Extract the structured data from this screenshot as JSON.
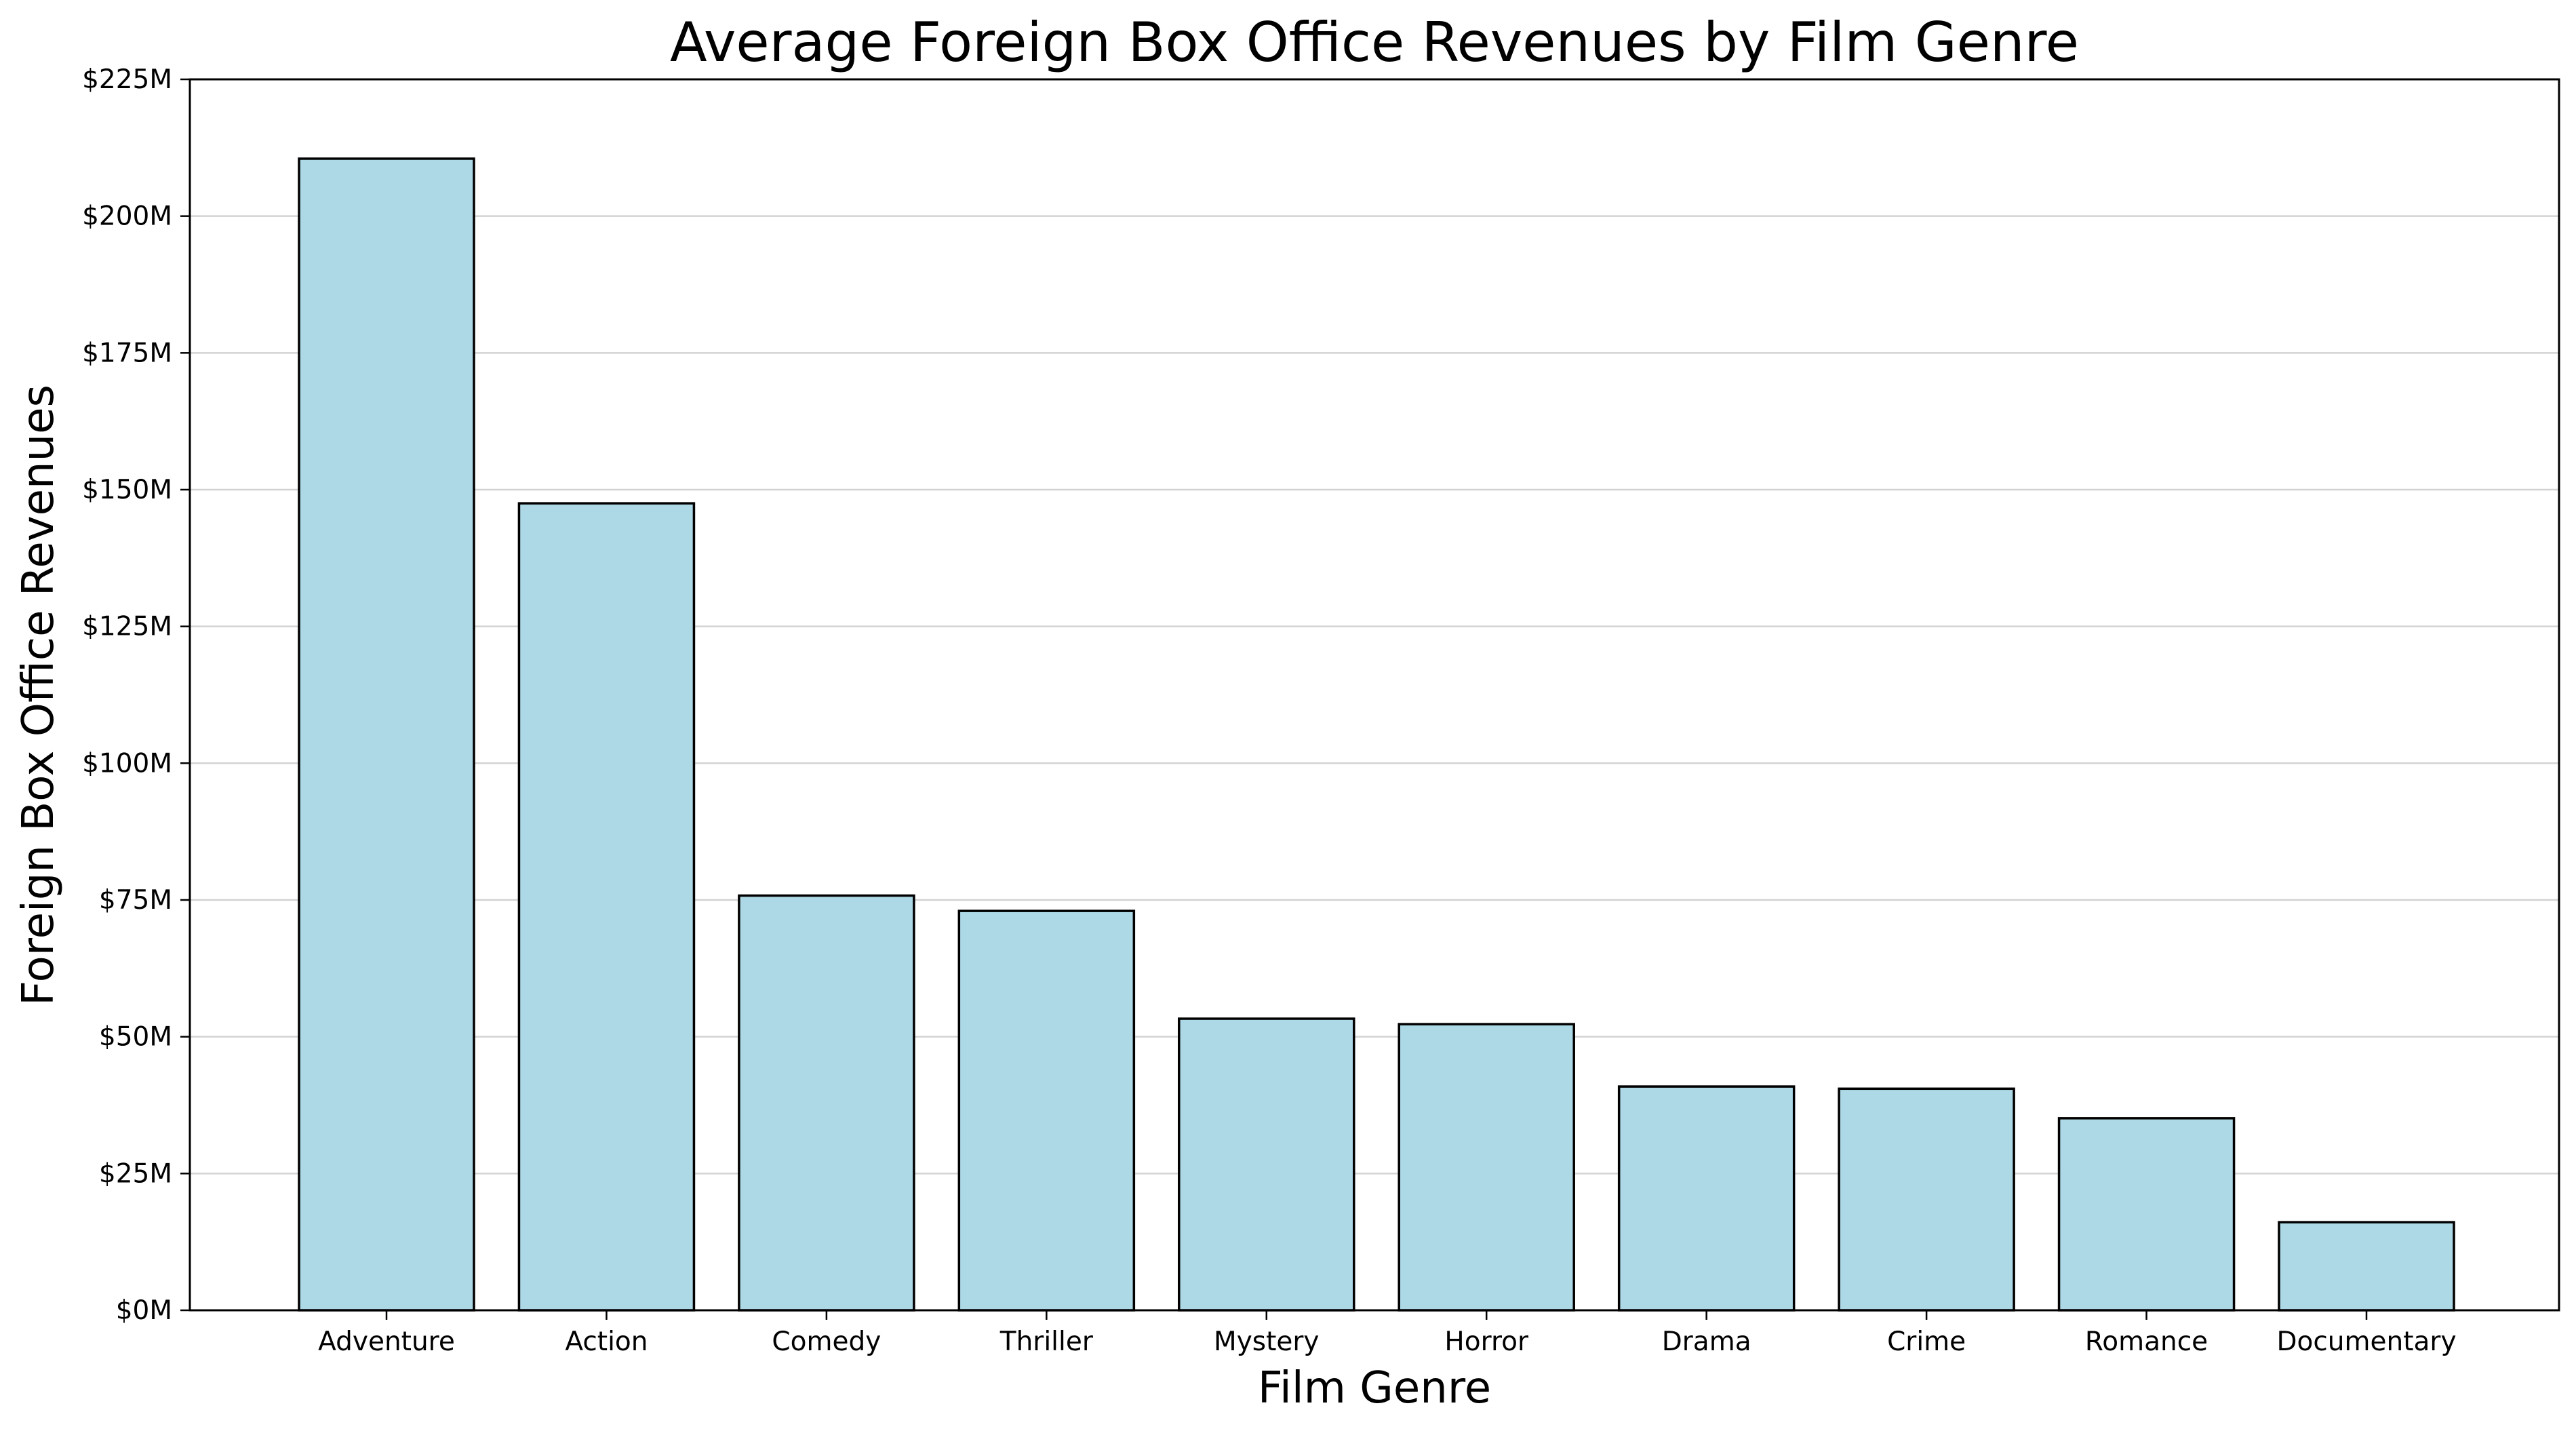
{
  "chart_data": {
    "type": "bar",
    "title": "Average Foreign Box Office Revenues by Film Genre",
    "xlabel": "Film Genre",
    "ylabel": "Foreign Box Office Revenues",
    "categories": [
      "Adventure",
      "Action",
      "Comedy",
      "Thriller",
      "Mystery",
      "Horror",
      "Drama",
      "Crime",
      "Romance",
      "Documentary"
    ],
    "values": [
      210.5,
      147.5,
      75.8,
      73.0,
      53.3,
      52.3,
      40.9,
      40.5,
      35.1,
      16.1
    ],
    "value_unit": "M USD",
    "ylim": [
      0,
      225
    ],
    "yticks": [
      0,
      25,
      50,
      75,
      100,
      125,
      150,
      175,
      200,
      225
    ],
    "ytick_labels": [
      "$0M",
      "$25M",
      "$50M",
      "$75M",
      "$100M",
      "$125M",
      "$150M",
      "$175M",
      "$200M",
      "$225M"
    ],
    "grid": "horizontal",
    "legend": "none",
    "colors": {
      "bar_fill": "#add8e6",
      "bar_edge": "#000000",
      "grid": "#d3d3d3",
      "axis": "#000000",
      "background": "#ffffff"
    }
  }
}
